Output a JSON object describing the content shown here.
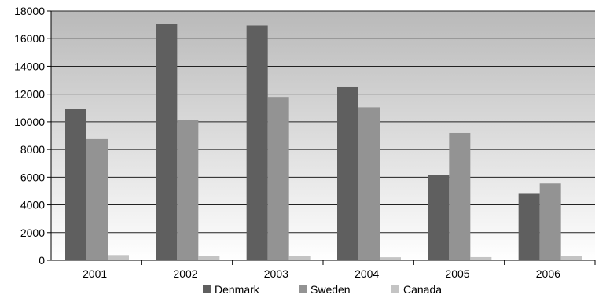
{
  "chart_data": {
    "type": "bar",
    "categories": [
      "2001",
      "2002",
      "2003",
      "2004",
      "2005",
      "2006"
    ],
    "series": [
      {
        "name": "Denmark",
        "color": "#5f5f5f",
        "values": [
          10950,
          17050,
          16950,
          12550,
          6150,
          4800
        ]
      },
      {
        "name": "Sweden",
        "color": "#939393",
        "values": [
          8750,
          10150,
          11800,
          11050,
          9200,
          5550
        ]
      },
      {
        "name": "Canada",
        "color": "#c4c4c4",
        "values": [
          380,
          300,
          320,
          220,
          230,
          310
        ]
      }
    ],
    "ylim": [
      0,
      18000
    ],
    "yticks": [
      0,
      2000,
      4000,
      6000,
      8000,
      10000,
      12000,
      14000,
      16000,
      18000
    ],
    "ytick_labels": [
      "0",
      "2000",
      "4000",
      "6000",
      "8000",
      "10000",
      "12000",
      "14000",
      "16000",
      "18000"
    ],
    "grid": true,
    "legend_position": "bottom",
    "background_gradient": [
      "#b9b9b9",
      "#ffffff"
    ],
    "title": "",
    "xlabel": "",
    "ylabel": ""
  }
}
